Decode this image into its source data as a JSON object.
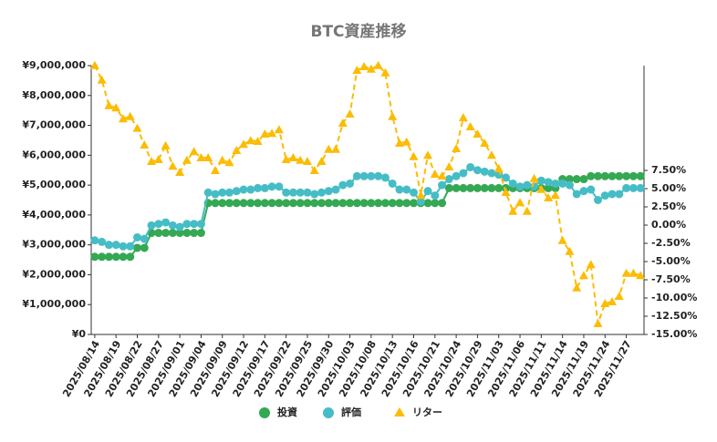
{
  "chart_data": {
    "type": "line",
    "title": "BTC資産推移",
    "categories": [
      "2025/08/14",
      null,
      null,
      "2025/08/19",
      null,
      null,
      "2025/08/22",
      null,
      null,
      "2025/08/27",
      null,
      null,
      "2025/09/01",
      null,
      null,
      "2025/09/04",
      null,
      null,
      "2025/09/09",
      null,
      null,
      "2025/09/12",
      null,
      null,
      "2025/09/17",
      null,
      null,
      "2025/09/22",
      null,
      null,
      "2025/09/25",
      null,
      null,
      "2025/09/30",
      null,
      null,
      "2025/10/03",
      null,
      null,
      "2025/10/08",
      null,
      null,
      "2025/10/13",
      null,
      null,
      "2025/10/16",
      null,
      null,
      "2025/10/21",
      null,
      null,
      "2025/10/24",
      null,
      null,
      "2025/10/29",
      null,
      null,
      "2025/11/03",
      null,
      null,
      "2025/11/06",
      null,
      null,
      "2025/11/11",
      null,
      null,
      "2025/11/14",
      null,
      null,
      "2025/11/19",
      null,
      null,
      "2025/11/24",
      null,
      null,
      "2025/11/27",
      null,
      null
    ],
    "series": [
      {
        "name": "投資",
        "color": "#34a853",
        "marker": "circle",
        "dashed": false,
        "axis": "y",
        "values": [
          2600000,
          2600000,
          2600000,
          2600000,
          2600000,
          2600000,
          2900000,
          2900000,
          3400000,
          3400000,
          3400000,
          3400000,
          3400000,
          3400000,
          3400000,
          3400000,
          4400000,
          4400000,
          4400000,
          4400000,
          4400000,
          4400000,
          4400000,
          4400000,
          4400000,
          4400000,
          4400000,
          4400000,
          4400000,
          4400000,
          4400000,
          4400000,
          4400000,
          4400000,
          4400000,
          4400000,
          4400000,
          4400000,
          4400000,
          4400000,
          4400000,
          4400000,
          4400000,
          4400000,
          4400000,
          4400000,
          4400000,
          4400000,
          4400000,
          4400000,
          4900000,
          4900000,
          4900000,
          4900000,
          4900000,
          4900000,
          4900000,
          4900000,
          4900000,
          4900000,
          4900000,
          4900000,
          4900000,
          4900000,
          4900000,
          4900000,
          5200000,
          5200000,
          5200000,
          5200000,
          5300000,
          5300000,
          5300000,
          5300000,
          5300000,
          5300000,
          5300000,
          5300000
        ]
      },
      {
        "name": "評価",
        "color": "#46bdc6",
        "marker": "circle",
        "dashed": false,
        "axis": "y",
        "values": [
          3150000,
          3100000,
          3000000,
          3000000,
          2950000,
          2950000,
          3250000,
          3200000,
          3650000,
          3700000,
          3750000,
          3650000,
          3600000,
          3700000,
          3700000,
          3700000,
          4750000,
          4700000,
          4750000,
          4750000,
          4800000,
          4850000,
          4850000,
          4900000,
          4900000,
          4950000,
          4950000,
          4750000,
          4750000,
          4750000,
          4750000,
          4700000,
          4750000,
          4800000,
          4850000,
          5000000,
          5050000,
          5300000,
          5300000,
          5300000,
          5300000,
          5250000,
          5050000,
          4850000,
          4850000,
          4750000,
          4450000,
          4800000,
          4650000,
          5000000,
          5200000,
          5300000,
          5400000,
          5600000,
          5500000,
          5450000,
          5400000,
          5350000,
          5250000,
          5050000,
          4950000,
          5000000,
          4950000,
          5150000,
          5100000,
          5050000,
          5050000,
          5000000,
          4700000,
          4800000,
          4850000,
          4500000,
          4650000,
          4700000,
          4700000,
          4900000,
          4900000,
          4900000
        ]
      },
      {
        "name": "リター",
        "color": "#fbbc04",
        "marker": "triangle",
        "dashed": true,
        "axis": "y2",
        "values": [
          21.9,
          19.9,
          16.4,
          16.1,
          14.6,
          14.9,
          13.3,
          11,
          8.75,
          9,
          10.9,
          8.1,
          7.25,
          8.9,
          10.1,
          9.25,
          9.25,
          7.5,
          8.9,
          8.6,
          10.25,
          11.1,
          11.6,
          11.5,
          12.5,
          12.6,
          13.1,
          9,
          9.25,
          8.9,
          8.75,
          7.5,
          8.75,
          10.4,
          10.4,
          14,
          15.25,
          21.25,
          21.75,
          21.4,
          21.9,
          20.9,
          14.9,
          11.25,
          11.4,
          9.4,
          4.1,
          9.6,
          7,
          6.75,
          8,
          10.5,
          14.75,
          13.5,
          12.5,
          11.25,
          9.6,
          7.75,
          4.5,
          1.9,
          3.1,
          1.9,
          6.4,
          4.9,
          3.75,
          4.1,
          -2.1,
          -3.6,
          -8.6,
          -6.9,
          -5.4,
          -13.5,
          -10.75,
          -10.5,
          -9.75,
          -6.6,
          -6.6,
          -6.9
        ]
      }
    ],
    "ylim": [
      0,
      9000000
    ],
    "yticks": [
      {
        "value": 0,
        "label": "¥0"
      },
      {
        "value": 1000000,
        "label": "¥1,000,000"
      },
      {
        "value": 2000000,
        "label": "¥2,000,000"
      },
      {
        "value": 3000000,
        "label": "¥3,000,000"
      },
      {
        "value": 4000000,
        "label": "¥4,000,000"
      },
      {
        "value": 5000000,
        "label": "¥5,000,000"
      },
      {
        "value": 6000000,
        "label": "¥6,000,000"
      },
      {
        "value": 7000000,
        "label": "¥7,000,000"
      },
      {
        "value": 8000000,
        "label": "¥8,000,000"
      },
      {
        "value": 9000000,
        "label": "¥9,000,000"
      }
    ],
    "y2lim": [
      -15,
      21.875
    ],
    "y2ticks": [
      {
        "value": -15,
        "label": "-15.00%"
      },
      {
        "value": -12.5,
        "label": "-12.50%"
      },
      {
        "value": -10,
        "label": "-10.00%"
      },
      {
        "value": -7.5,
        "label": "-7.50%"
      },
      {
        "value": -5,
        "label": "-5.00%"
      },
      {
        "value": -2.5,
        "label": "-2.50%"
      },
      {
        "value": 0,
        "label": "0.00%"
      },
      {
        "value": 2.5,
        "label": "2.50%"
      },
      {
        "value": 5,
        "label": "5.00%"
      },
      {
        "value": 7.5,
        "label": "7.50%"
      }
    ],
    "grid": false,
    "legend": "bottom"
  }
}
